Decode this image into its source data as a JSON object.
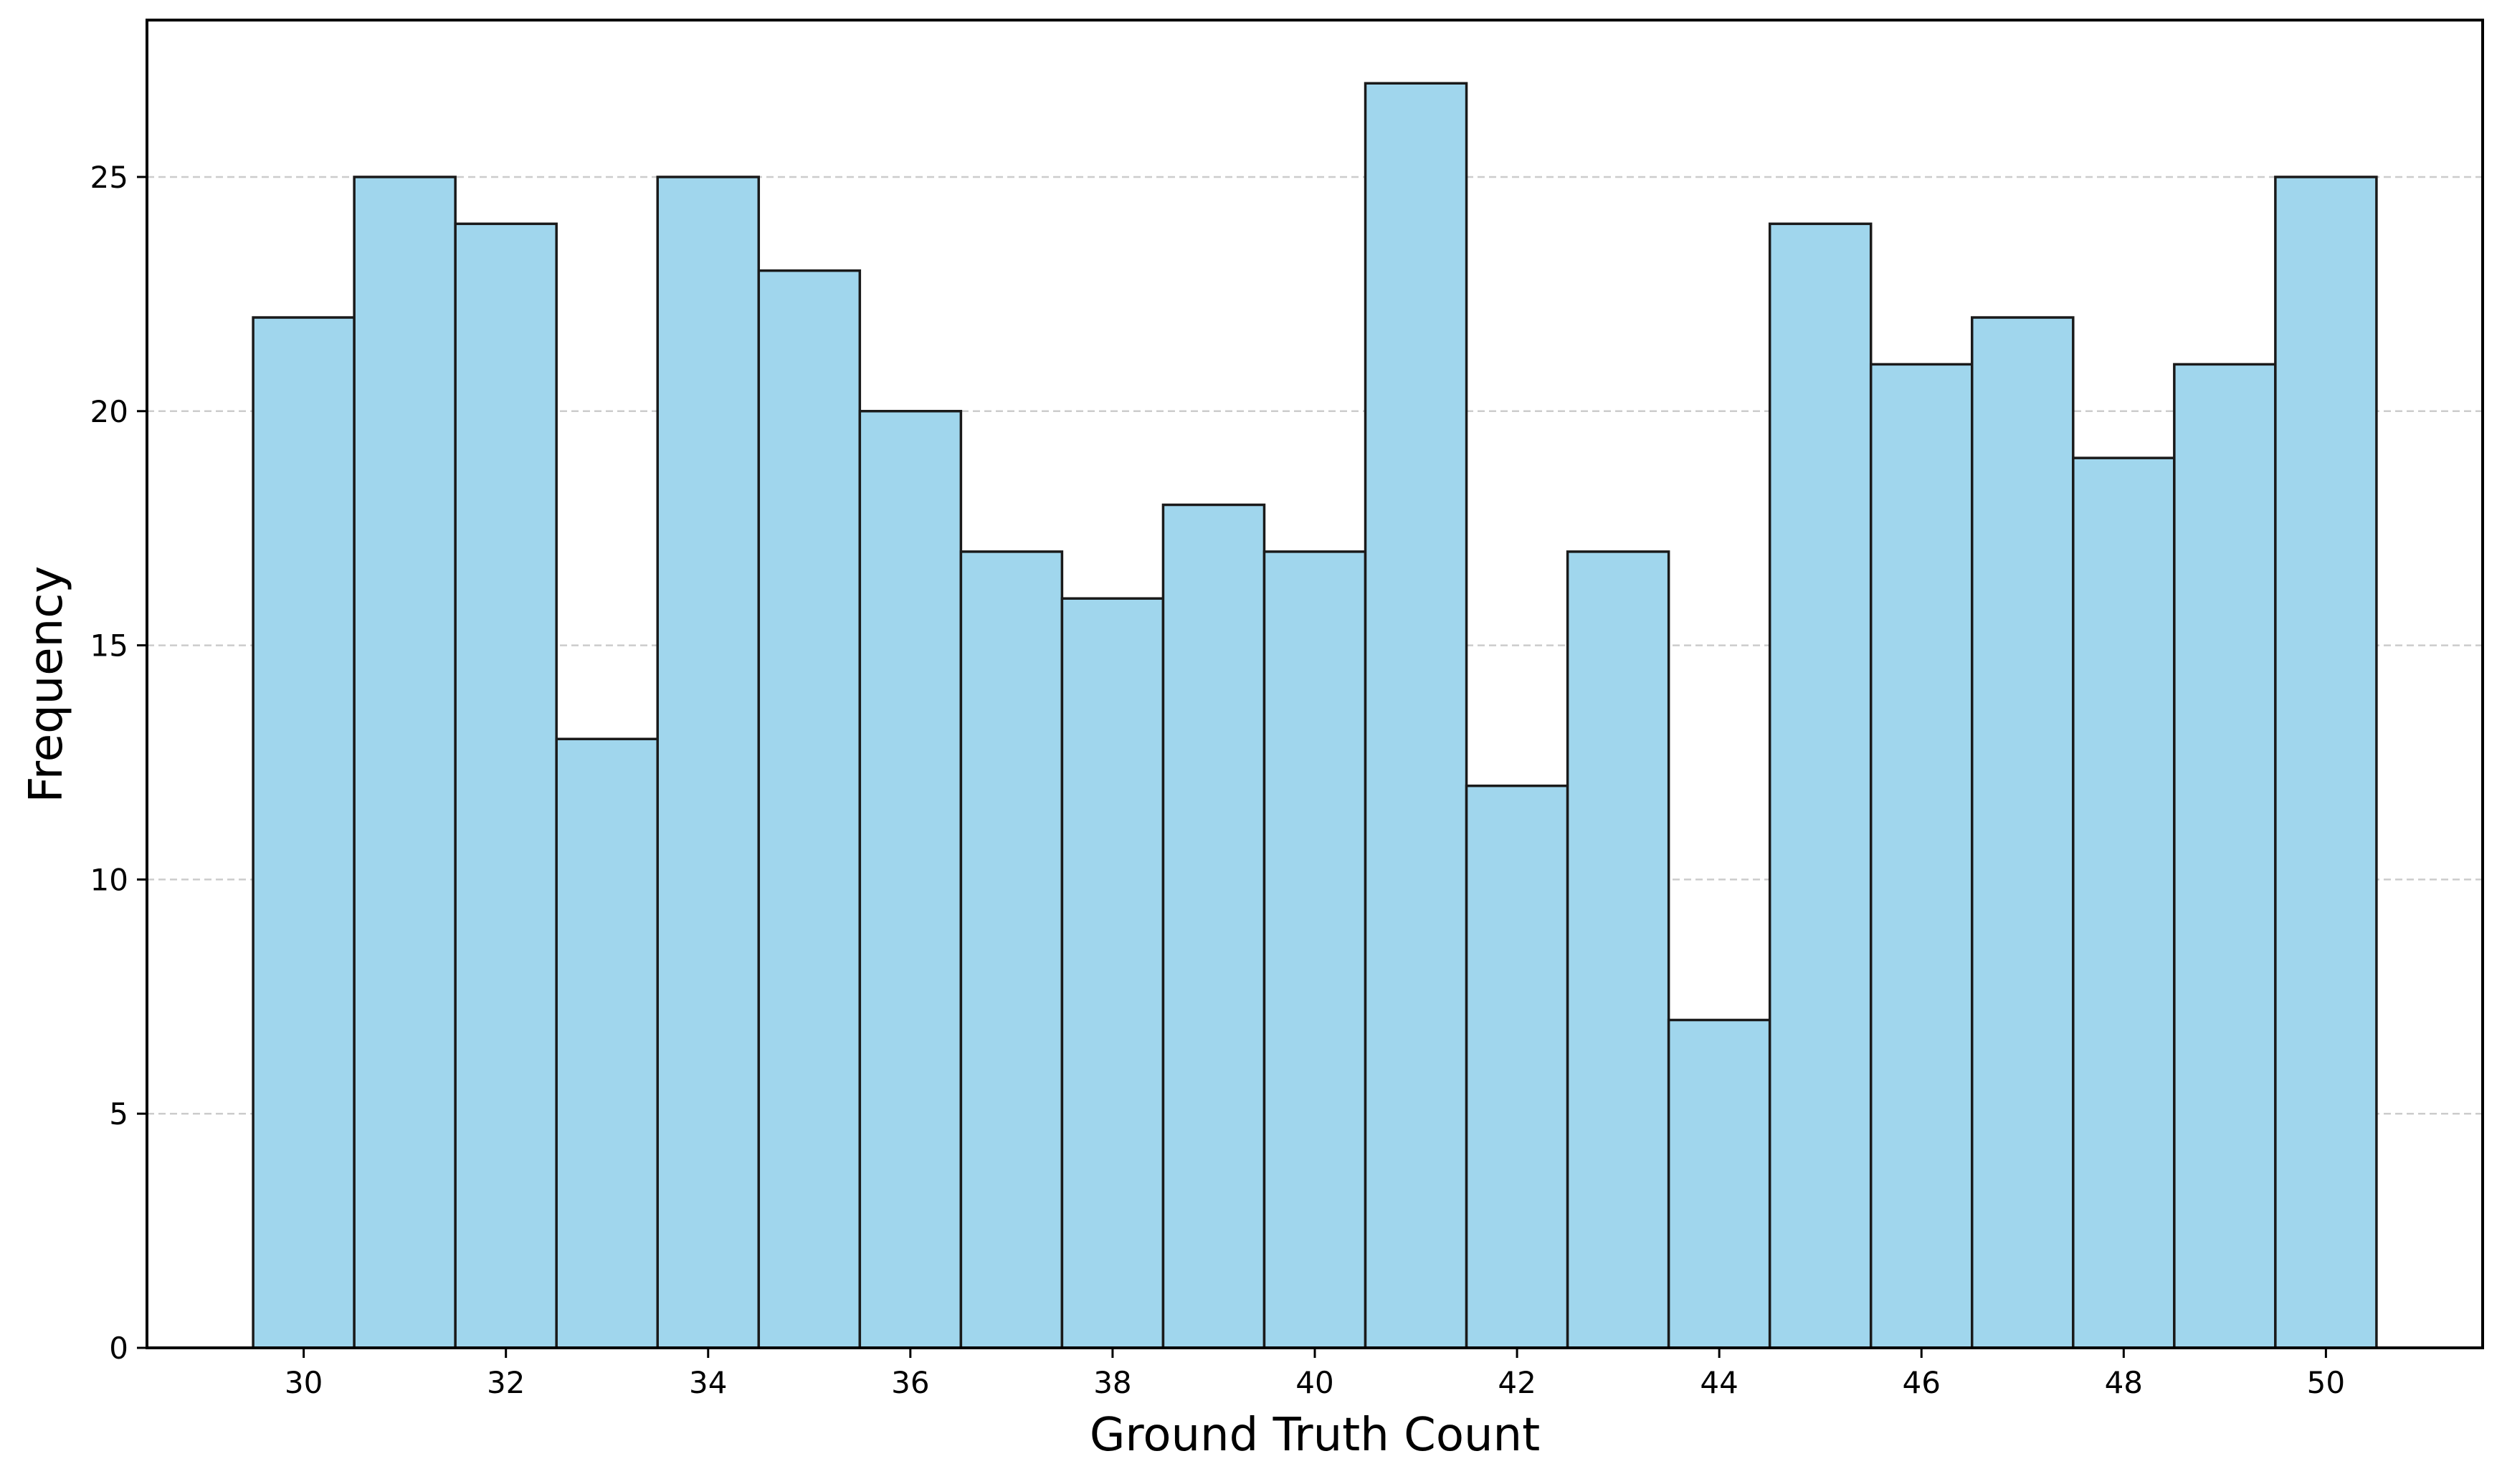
{
  "chart_data": {
    "type": "bar",
    "title": "",
    "xlabel": "Ground Truth Count",
    "ylabel": "Frequency",
    "categories": [
      30,
      31,
      32,
      33,
      34,
      35,
      36,
      37,
      38,
      39,
      40,
      41,
      42,
      43,
      44,
      45,
      46,
      47,
      48,
      49,
      50
    ],
    "values": [
      22,
      25,
      24,
      13,
      25,
      23,
      20,
      17,
      16,
      18,
      17,
      27,
      12,
      17,
      7,
      24,
      21,
      22,
      19,
      21,
      25
    ],
    "bin_width": 1,
    "xlim": [
      28.45,
      51.55
    ],
    "ylim": [
      0,
      28.35
    ],
    "xticks": [
      30,
      32,
      34,
      36,
      38,
      40,
      42,
      44,
      46,
      48,
      50
    ],
    "yticks": [
      0,
      5,
      10,
      15,
      20,
      25
    ],
    "grid": {
      "axis": "y",
      "style": "dashed",
      "color": "#cccccc"
    },
    "legend": "none",
    "colors": {
      "bar_fill": "#a0d6ed",
      "bar_edge": "#1a1a1a",
      "axes": "#000000"
    }
  }
}
